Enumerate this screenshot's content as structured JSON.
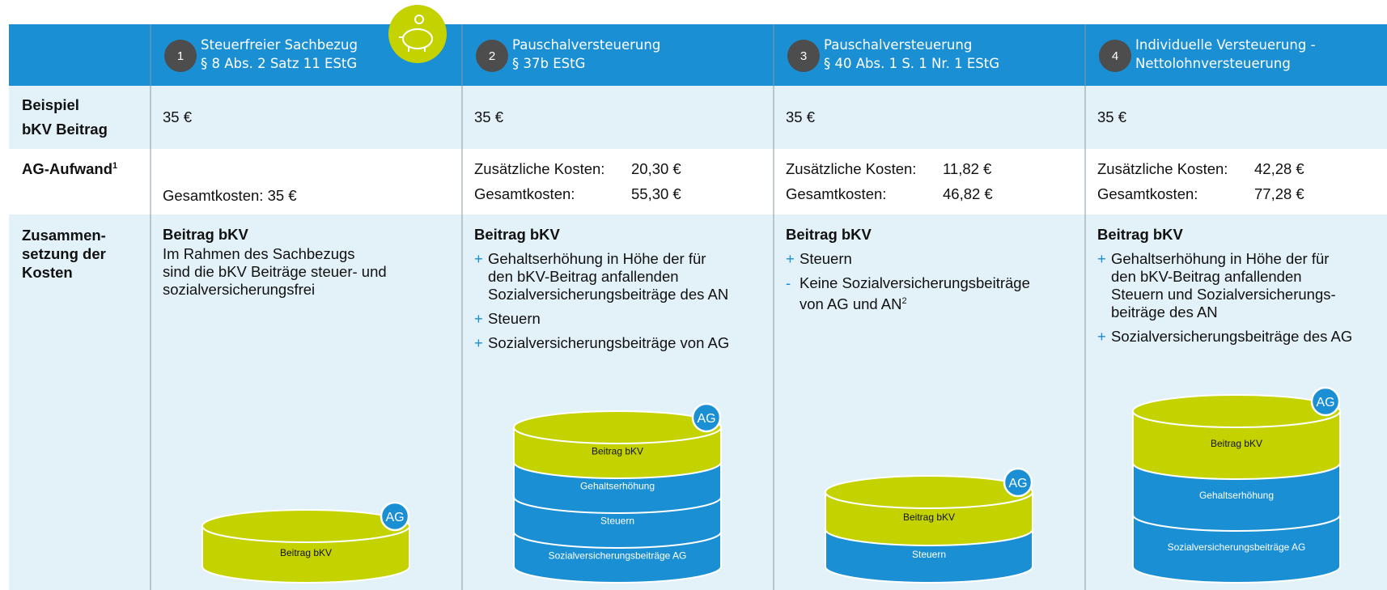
{
  "columns": [
    {
      "number": "1",
      "title_lines": [
        "Steuerfreier Sachbezug",
        "§ 8 Abs. 2 Satz 11 EStG"
      ]
    },
    {
      "number": "2",
      "title_lines": [
        "Pauschalversteuerung",
        "§ 37b EStG"
      ]
    },
    {
      "number": "3",
      "title_lines": [
        "Pauschalversteuerung",
        "§ 40 Abs. 1 S. 1 Nr. 1 EStG"
      ]
    },
    {
      "number": "4",
      "title_lines": [
        "Individuelle Versteuerung -",
        "Nettolohnversteuerung"
      ]
    }
  ],
  "rows": {
    "example": {
      "label_lines": [
        "Beispiel",
        "bKV Beitrag"
      ],
      "values": [
        "35 €",
        "35 €",
        "35 €",
        "35 €"
      ]
    },
    "cost": {
      "label": "AG-Aufwand",
      "footnote": "1",
      "cells": [
        {
          "total_label": "Gesamtkosten:",
          "total": "35 €"
        },
        {
          "extra_label": "Zusätzliche Kosten:",
          "extra": "20,30 €",
          "total_label": "Gesamtkosten:",
          "total": "55,30 €"
        },
        {
          "extra_label": "Zusätzliche Kosten:",
          "extra": "11,82 €",
          "total_label": "Gesamtkosten:",
          "total": "46,82 €"
        },
        {
          "extra_label": "Zusätzliche Kosten:",
          "extra": "42,28 €",
          "total_label": "Gesamtkosten:",
          "total": "77,28 €"
        }
      ]
    },
    "composition": {
      "label_lines": [
        "Zusammen-",
        "setzung der",
        "Kosten"
      ],
      "cells": [
        {
          "heading": "Beitrag bKV",
          "text_lines": [
            "Im Rahmen des Sachbezugs",
            "sind die bKV Beiträge steuer- und",
            "sozialversicherungsfrei"
          ],
          "stack": {
            "badge": "AG",
            "layers": [
              "Beitrag bKV"
            ]
          }
        },
        {
          "heading": "Beitrag bKV",
          "items": [
            {
              "sign": "+",
              "lines": [
                "Gehaltserhöhung in Höhe der für",
                "den bKV-Beitrag anfallenden",
                "Sozialversicherungsbeiträge des AN"
              ]
            },
            {
              "sign": "+",
              "lines": [
                "Steuern"
              ]
            },
            {
              "sign": "+",
              "lines": [
                "Sozialversicherungsbeiträge von AG"
              ]
            }
          ],
          "stack": {
            "badge": "AG",
            "layers": [
              "Beitrag bKV",
              "Gehaltserhöhung",
              "Steuern",
              "Sozialversicherungsbeiträge AG"
            ]
          }
        },
        {
          "heading": "Beitrag bKV",
          "items": [
            {
              "sign": "+",
              "lines": [
                "Steuern"
              ]
            },
            {
              "sign": "-",
              "lines": [
                "Keine Sozialversicherungsbeiträge",
                "von AG und AN"
              ],
              "sup": "2"
            }
          ],
          "stack": {
            "badge": "AG",
            "layers": [
              "Beitrag bKV",
              "Steuern"
            ]
          }
        },
        {
          "heading": "Beitrag bKV",
          "items": [
            {
              "sign": "+",
              "lines": [
                "Gehaltserhöhung in Höhe der für",
                "den bKV-Beitrag anfallenden",
                "Steuern und Sozialversicherungs-",
                "beiträge des AN"
              ]
            },
            {
              "sign": "+",
              "lines": [
                "Sozialversicherungsbeiträge des AG"
              ]
            }
          ],
          "stack": {
            "badge": "AG",
            "layers": [
              "Beitrag bKV",
              "Gehaltserhöhung",
              "Sozialversicherungsbeiträge AG"
            ]
          }
        }
      ]
    }
  }
}
